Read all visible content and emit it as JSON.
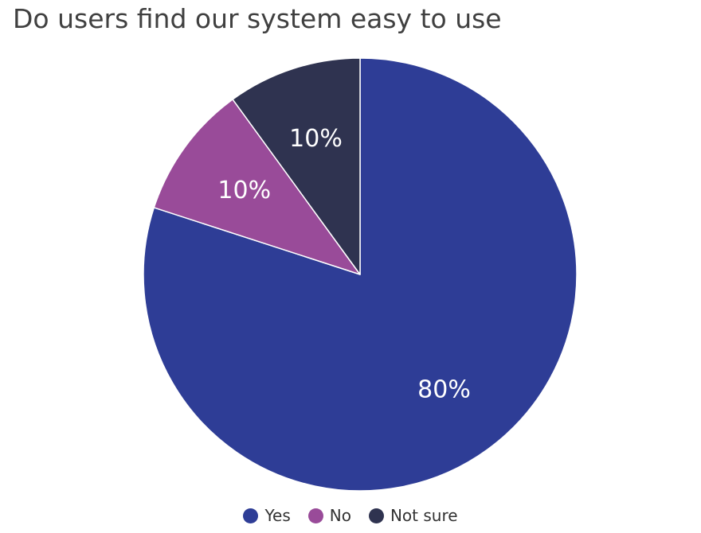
{
  "chart_data": {
    "type": "pie",
    "title": "Do users find our system easy to use",
    "categories": [
      "Yes",
      "No",
      "Not sure"
    ],
    "values": [
      80,
      10,
      10
    ],
    "labels": [
      "80%",
      "10%",
      "10%"
    ],
    "colors": [
      "#2e3d96",
      "#994b99",
      "#2f3350"
    ],
    "legend_position": "bottom",
    "start_angle": "top",
    "direction": "clockwise"
  }
}
